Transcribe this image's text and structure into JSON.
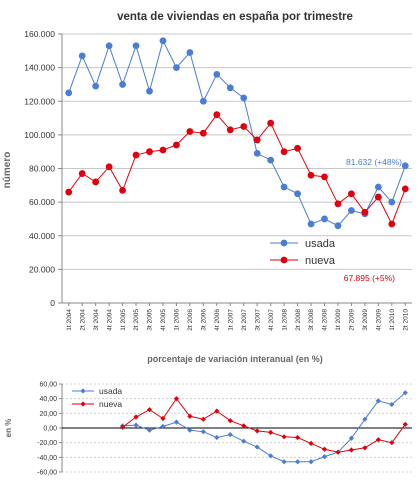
{
  "colors": {
    "usada": "#4a7dd6",
    "nueva": "#e0000d",
    "grid": "#c8c8c8",
    "axis": "#888888",
    "text": "#333333"
  },
  "periods": [
    "1t 2004",
    "2t 2004",
    "3t 2004",
    "4t 2004",
    "1t 2005",
    "2t 2005",
    "3t 2005",
    "4t 2005",
    "1t 2006",
    "2t 2006",
    "3t 2006",
    "4t 2006",
    "1t 2007",
    "2t 2007",
    "3t 2007",
    "4t 2007",
    "1t 2008",
    "2t 2008",
    "3t 2008",
    "4t 2008",
    "1t 2009",
    "2t 2009",
    "3t 2009",
    "4t 2009",
    "1t 2010",
    "2t 2010"
  ],
  "chart_data": [
    {
      "type": "line",
      "title": "venta de viviendas en españa por trimestre",
      "ylabel": "número",
      "xlabel": "",
      "ylim": [
        0,
        160000
      ],
      "yticks": [
        "0",
        "20.000",
        "40.000",
        "60.000",
        "80.000",
        "100.000",
        "120.000",
        "140.000",
        "160.000"
      ],
      "ytick_values": [
        0,
        20000,
        40000,
        60000,
        80000,
        100000,
        120000,
        140000,
        160000
      ],
      "grid": true,
      "legend": "center-right",
      "series": [
        {
          "name": "usada",
          "values": [
            125000,
            147000,
            129000,
            153000,
            130000,
            153000,
            126000,
            156000,
            140000,
            149000,
            120000,
            136000,
            128000,
            122000,
            89000,
            85000,
            69000,
            65000,
            47000,
            50000,
            46000,
            55000,
            53000,
            69000,
            60000,
            81632
          ]
        },
        {
          "name": "nueva",
          "values": [
            66000,
            77000,
            72000,
            81000,
            67000,
            88000,
            90000,
            91000,
            94000,
            102000,
            101000,
            112000,
            103000,
            105000,
            97000,
            107000,
            90000,
            92000,
            76000,
            75000,
            59000,
            65000,
            54000,
            63000,
            47000,
            67895
          ]
        }
      ],
      "annotations": [
        {
          "text": "81.632 (+48%)",
          "series": "usada"
        },
        {
          "text": "67.895 (+5%)",
          "series": "nueva"
        }
      ]
    },
    {
      "type": "line",
      "title": "porcentaje de variación interanual (en %)",
      "ylabel": "en %",
      "xlabel": "",
      "ylim": [
        -60,
        60
      ],
      "yticks": [
        "-60,00",
        "-40,00",
        "-20,00",
        "0,00",
        "20,00",
        "40,00",
        "60,00"
      ],
      "ytick_values": [
        -60,
        -40,
        -20,
        0,
        20,
        40,
        60
      ],
      "grid": true,
      "legend": "top-left",
      "series": [
        {
          "name": "usada",
          "values": [
            null,
            null,
            null,
            null,
            3,
            4,
            -3,
            2,
            8,
            -3,
            -5,
            -13,
            -9,
            -18,
            -26,
            -38,
            -46,
            -46,
            -46,
            -39,
            -33,
            -14,
            12,
            37,
            32,
            48
          ]
        },
        {
          "name": "nueva",
          "values": [
            null,
            null,
            null,
            null,
            1,
            15,
            25,
            13,
            40,
            16,
            12,
            23,
            10,
            3,
            -4,
            -6,
            -12,
            -13,
            -21,
            -29,
            -33,
            -30,
            -27,
            -16,
            -20,
            5
          ]
        }
      ]
    }
  ]
}
